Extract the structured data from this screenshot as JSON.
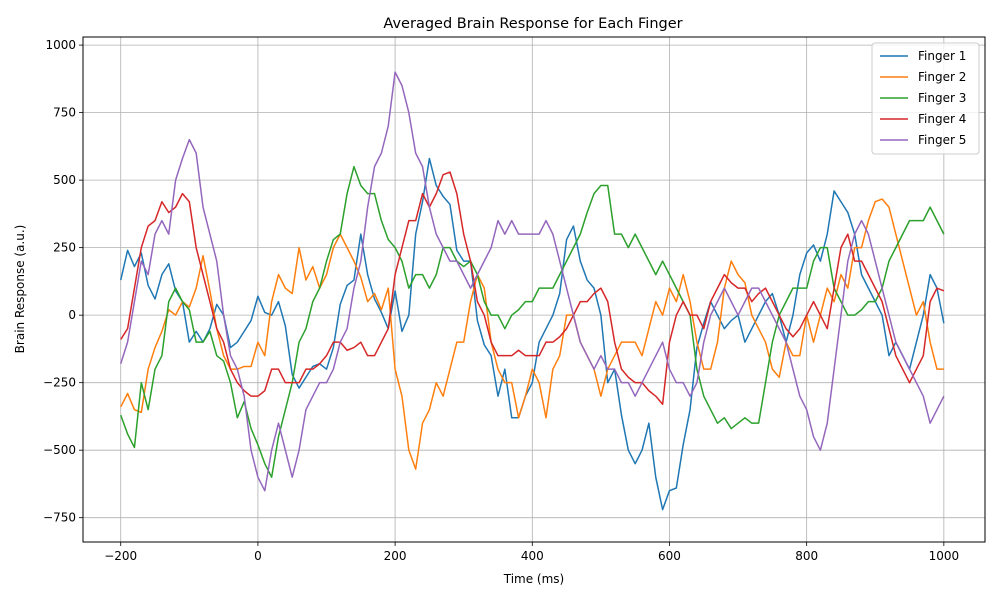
{
  "chart_data": {
    "type": "line",
    "title": "Averaged Brain Response for Each Finger",
    "xlabel": "Time (ms)",
    "ylabel": "Brain Response (a.u.)",
    "xlim": [
      -255,
      1060
    ],
    "ylim": [
      -840,
      1030
    ],
    "xticks": [
      -200,
      0,
      200,
      400,
      600,
      800,
      1000
    ],
    "yticks": [
      -750,
      -500,
      -250,
      0,
      250,
      500,
      750,
      1000
    ],
    "xtick_labels": [
      "−200",
      "0",
      "200",
      "400",
      "600",
      "800",
      "1000"
    ],
    "ytick_labels": [
      "−750",
      "−500",
      "−250",
      "0",
      "250",
      "500",
      "750",
      "1000"
    ],
    "grid": true,
    "legend_position": "top-right",
    "x": [
      -200,
      -190,
      -180,
      -170,
      -160,
      -150,
      -140,
      -130,
      -120,
      -110,
      -100,
      -90,
      -80,
      -70,
      -60,
      -50,
      -40,
      -30,
      -20,
      -10,
      0,
      10,
      20,
      30,
      40,
      50,
      60,
      70,
      80,
      90,
      100,
      110,
      120,
      130,
      140,
      150,
      160,
      170,
      180,
      190,
      200,
      210,
      220,
      230,
      240,
      250,
      260,
      270,
      280,
      290,
      300,
      310,
      320,
      330,
      340,
      350,
      360,
      370,
      380,
      390,
      400,
      410,
      420,
      430,
      440,
      450,
      460,
      470,
      480,
      490,
      500,
      510,
      520,
      530,
      540,
      550,
      560,
      570,
      580,
      590,
      600,
      610,
      620,
      630,
      640,
      650,
      660,
      670,
      680,
      690,
      700,
      710,
      720,
      730,
      740,
      750,
      760,
      770,
      780,
      790,
      800,
      810,
      820,
      830,
      840,
      850,
      860,
      870,
      880,
      890,
      900,
      910,
      920,
      930,
      940,
      950,
      960,
      970,
      980,
      990,
      1000
    ],
    "series": [
      {
        "name": "Finger 1",
        "color": "#1f77b4",
        "values": [
          130,
          240,
          180,
          230,
          110,
          60,
          150,
          190,
          90,
          50,
          -100,
          -60,
          -100,
          -50,
          40,
          0,
          -120,
          -100,
          -60,
          -20,
          70,
          10,
          0,
          50,
          -40,
          -220,
          -270,
          -230,
          -190,
          -180,
          -200,
          -120,
          40,
          110,
          130,
          300,
          150,
          60,
          10,
          -50,
          90,
          -60,
          0,
          300,
          420,
          580,
          480,
          440,
          410,
          240,
          200,
          200,
          -20,
          -110,
          -150,
          -300,
          -200,
          -380,
          -380,
          -300,
          -250,
          -100,
          -50,
          0,
          80,
          280,
          330,
          200,
          130,
          100,
          0,
          -250,
          -200,
          -370,
          -500,
          -550,
          -500,
          -400,
          -600,
          -720,
          -650,
          -640,
          -480,
          -350,
          -120,
          -30,
          50,
          0,
          -50,
          -20,
          0,
          -100,
          -50,
          0,
          50,
          80,
          0,
          -100,
          0,
          150,
          230,
          260,
          200,
          300,
          460,
          420,
          380,
          300,
          150,
          100,
          50,
          0,
          -150,
          -100,
          -150,
          -200,
          -100,
          0,
          150,
          100,
          -30
        ]
      },
      {
        "name": "Finger 2",
        "color": "#ff7f0e",
        "values": [
          -340,
          -290,
          -350,
          -360,
          -200,
          -120,
          -60,
          20,
          0,
          50,
          30,
          100,
          220,
          90,
          -50,
          -150,
          -200,
          -200,
          -190,
          -190,
          -100,
          -150,
          50,
          150,
          100,
          80,
          250,
          130,
          180,
          100,
          150,
          250,
          300,
          250,
          200,
          140,
          50,
          80,
          20,
          100,
          -200,
          -300,
          -500,
          -570,
          -400,
          -350,
          -250,
          -300,
          -200,
          -100,
          -100,
          50,
          150,
          100,
          -100,
          -200,
          -250,
          -250,
          -380,
          -300,
          -200,
          -250,
          -380,
          -200,
          -150,
          0,
          0,
          -100,
          -150,
          -200,
          -300,
          -200,
          -150,
          -100,
          -100,
          -100,
          -150,
          -50,
          50,
          0,
          100,
          50,
          150,
          50,
          -100,
          -200,
          -200,
          -100,
          100,
          200,
          150,
          120,
          0,
          -50,
          -100,
          -200,
          -230,
          -100,
          -150,
          -150,
          0,
          -100,
          0,
          100,
          50,
          150,
          100,
          250,
          250,
          350,
          420,
          430,
          400,
          300,
          200,
          100,
          0,
          50,
          -100,
          -200,
          -200
        ]
      },
      {
        "name": "Finger 3",
        "color": "#2ca02c",
        "values": [
          -370,
          -440,
          -490,
          -250,
          -350,
          -200,
          -150,
          50,
          100,
          50,
          20,
          -100,
          -100,
          -60,
          -150,
          -170,
          -250,
          -380,
          -320,
          -420,
          -480,
          -550,
          -600,
          -450,
          -350,
          -250,
          -100,
          -50,
          50,
          100,
          200,
          280,
          300,
          450,
          550,
          480,
          450,
          450,
          350,
          280,
          250,
          200,
          100,
          150,
          150,
          100,
          150,
          250,
          250,
          200,
          180,
          200,
          150,
          50,
          0,
          0,
          -50,
          0,
          20,
          50,
          50,
          100,
          100,
          100,
          150,
          200,
          250,
          300,
          380,
          450,
          480,
          480,
          300,
          300,
          250,
          300,
          250,
          200,
          150,
          200,
          150,
          100,
          50,
          0,
          -200,
          -300,
          -350,
          -400,
          -380,
          -420,
          -400,
          -380,
          -400,
          -400,
          -250,
          -100,
          0,
          50,
          100,
          100,
          100,
          200,
          250,
          250,
          100,
          50,
          0,
          0,
          20,
          50,
          50,
          100,
          200,
          250,
          300,
          350,
          350,
          350,
          400,
          350,
          300
        ]
      },
      {
        "name": "Finger 4",
        "color": "#d62728",
        "values": [
          -90,
          -50,
          100,
          250,
          330,
          350,
          420,
          380,
          400,
          450,
          420,
          250,
          150,
          50,
          -50,
          -100,
          -200,
          -250,
          -280,
          -300,
          -300,
          -280,
          -200,
          -200,
          -250,
          -250,
          -250,
          -200,
          -200,
          -180,
          -150,
          -100,
          -100,
          -130,
          -120,
          -100,
          -150,
          -150,
          -100,
          -50,
          150,
          250,
          350,
          350,
          450,
          400,
          450,
          520,
          530,
          450,
          300,
          200,
          50,
          0,
          -100,
          -150,
          -150,
          -150,
          -130,
          -150,
          -150,
          -150,
          -100,
          -100,
          -80,
          -50,
          0,
          50,
          50,
          80,
          100,
          50,
          -100,
          -200,
          -230,
          -250,
          -250,
          -280,
          -300,
          -330,
          -100,
          0,
          50,
          0,
          0,
          -50,
          50,
          100,
          150,
          120,
          100,
          100,
          50,
          80,
          100,
          50,
          0,
          -50,
          -80,
          -50,
          0,
          50,
          0,
          -50,
          100,
          250,
          300,
          200,
          200,
          150,
          100,
          50,
          -50,
          -150,
          -200,
          -250,
          -200,
          -150,
          50,
          100,
          90
        ]
      },
      {
        "name": "Finger 5",
        "color": "#9467bd",
        "values": [
          -180,
          -100,
          50,
          200,
          150,
          300,
          350,
          300,
          500,
          580,
          650,
          600,
          400,
          300,
          200,
          0,
          -150,
          -200,
          -300,
          -500,
          -600,
          -650,
          -500,
          -400,
          -500,
          -600,
          -500,
          -350,
          -300,
          -250,
          -250,
          -200,
          -100,
          -50,
          100,
          200,
          400,
          550,
          600,
          700,
          900,
          850,
          750,
          600,
          550,
          400,
          300,
          250,
          200,
          200,
          150,
          100,
          150,
          200,
          250,
          350,
          300,
          350,
          300,
          300,
          300,
          300,
          350,
          300,
          200,
          100,
          0,
          -100,
          -150,
          -200,
          -150,
          -200,
          -200,
          -250,
          -250,
          -300,
          -250,
          -200,
          -150,
          -100,
          -200,
          -250,
          -250,
          -300,
          -250,
          -100,
          0,
          50,
          100,
          50,
          0,
          50,
          100,
          100,
          50,
          0,
          -50,
          -100,
          -200,
          -300,
          -350,
          -450,
          -500,
          -400,
          -200,
          0,
          200,
          300,
          350,
          300,
          200,
          100,
          0,
          -100,
          -150,
          -200,
          -250,
          -300,
          -400,
          -350,
          -300
        ]
      }
    ]
  }
}
